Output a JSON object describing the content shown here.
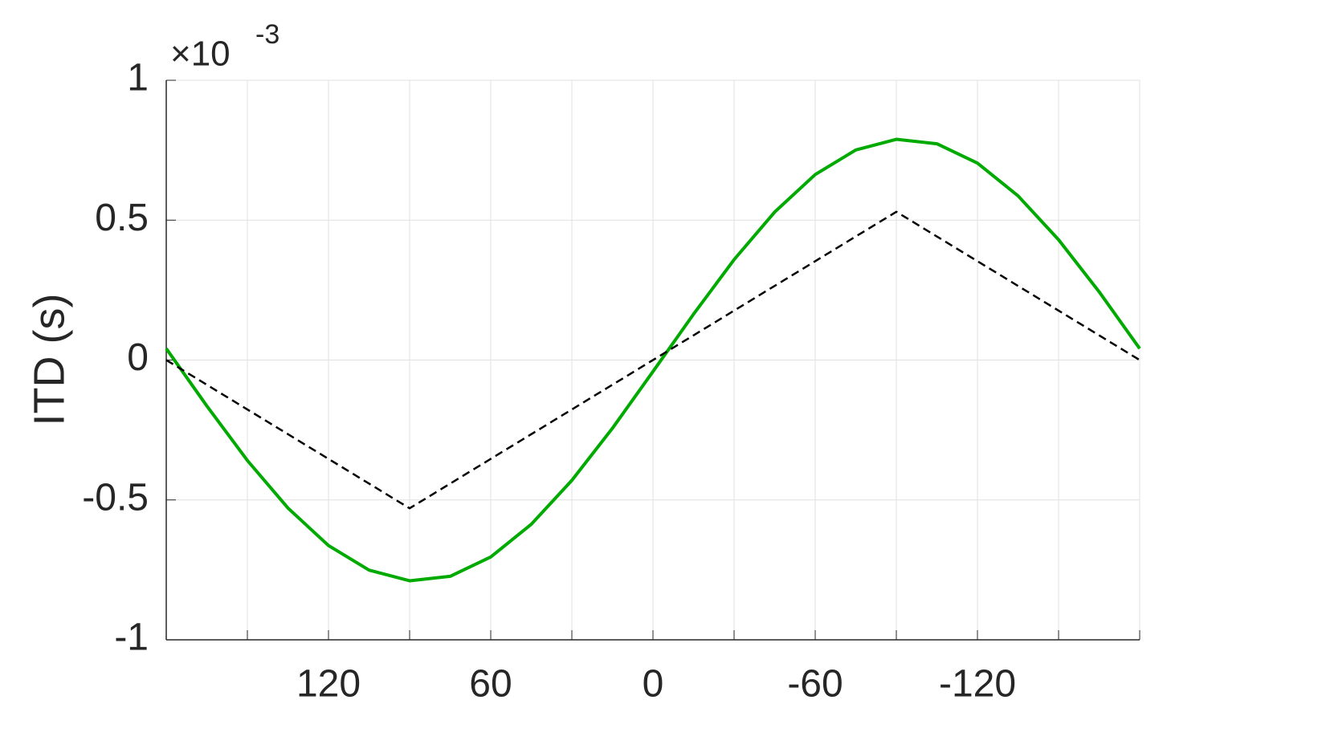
{
  "chart_data": {
    "type": "line",
    "ylabel": "ITD (s)",
    "y_multiplier": "×10",
    "y_multiplier_exponent": "-3",
    "xlim": [
      180,
      -180
    ],
    "ylim": [
      -1,
      1
    ],
    "xticks": [
      120,
      60,
      0,
      -60,
      -120
    ],
    "x_minor_ticks": [
      180,
      150,
      90,
      30,
      -30,
      -90,
      -150,
      -180
    ],
    "yticks": [
      -1,
      -0.5,
      0,
      0.5,
      1
    ],
    "grid": true,
    "series": [
      {
        "color": "#00aa00",
        "dash": false,
        "x": [
          180,
          165,
          150,
          135,
          120,
          105,
          90,
          75,
          60,
          45,
          30,
          15,
          0,
          -15,
          -30,
          -45,
          -60,
          -75,
          -90,
          -105,
          -120,
          -135,
          -150,
          -165,
          -180
        ],
        "values": [
          0.041,
          -0.164,
          -0.359,
          -0.529,
          -0.663,
          -0.751,
          -0.789,
          -0.773,
          -0.704,
          -0.587,
          -0.43,
          -0.244,
          -0.041,
          0.164,
          0.359,
          0.529,
          0.663,
          0.751,
          0.789,
          0.773,
          0.704,
          0.587,
          0.43,
          0.244,
          0.041
        ]
      },
      {
        "color": "#000000",
        "dash": true,
        "x": [
          180,
          90,
          0,
          -90,
          -180
        ],
        "values": [
          0,
          -0.53,
          0,
          0.53,
          0
        ]
      }
    ]
  }
}
